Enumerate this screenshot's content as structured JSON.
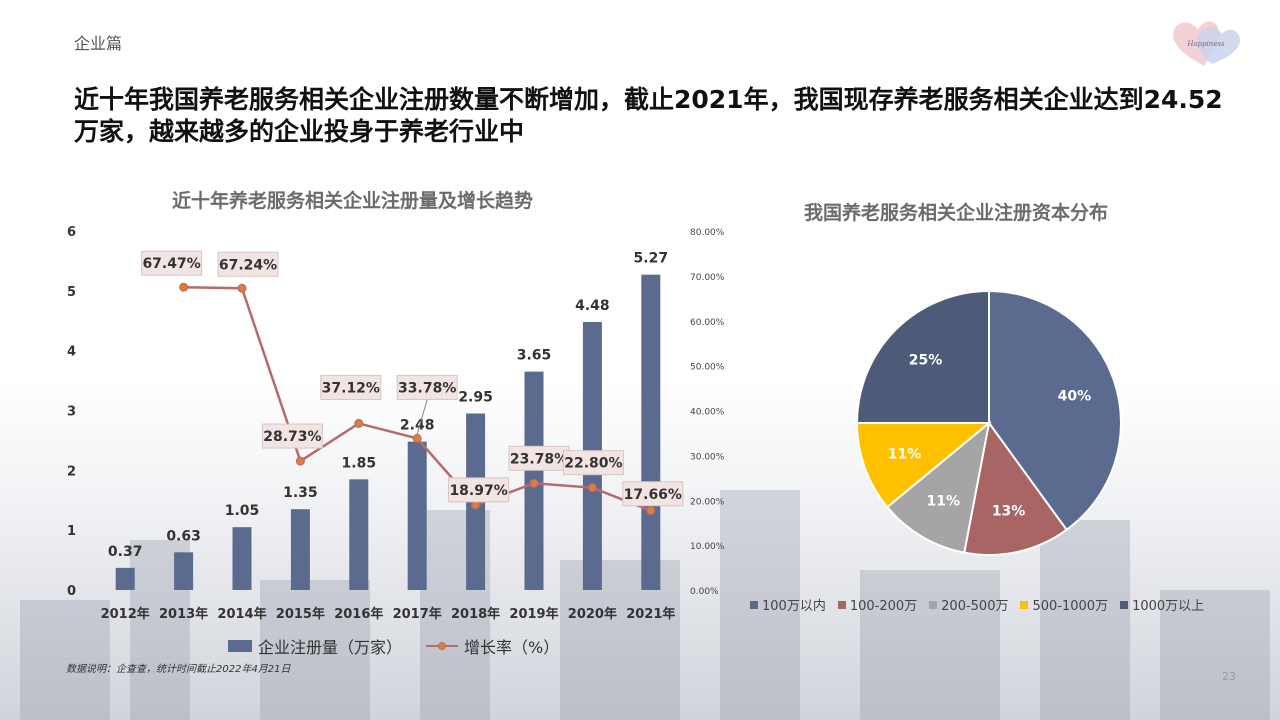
{
  "section_label": "企业篇",
  "headline": "近十年我国养老服务相关企业注册数量不断增加，截止2021年，我国现存养老服务相关企业达到24.52万家，越来越多的企业投身于养老行业中",
  "page_number": "23",
  "source_note": "数据说明：企查查，统计时间截止2022年4月21日",
  "logo_text": "we share Happiness 微乐康",
  "colors": {
    "bar": "#5b6a8f",
    "line": "#b56b6b",
    "line_marker": "#e07b39",
    "label_bg": "#f3e4e4"
  },
  "chart_data": [
    {
      "type": "bar",
      "title": "近十年养老服务相关企业注册量及增长趋势",
      "categories": [
        "2012年",
        "2013年",
        "2014年",
        "2015年",
        "2016年",
        "2017年",
        "2018年",
        "2019年",
        "2020年",
        "2021年"
      ],
      "series": [
        {
          "name": "企业注册量（万家）",
          "type": "bar",
          "axis": "left",
          "values": [
            0.37,
            0.63,
            1.05,
            1.35,
            1.85,
            2.48,
            2.95,
            3.65,
            4.48,
            5.27
          ],
          "labels": [
            "0.37",
            "0.63",
            "1.05",
            "1.35",
            "1.85",
            "2.48",
            "2.95",
            "3.65",
            "4.48",
            "5.27"
          ]
        },
        {
          "name": "增长率（%）",
          "type": "line",
          "axis": "right",
          "values": [
            null,
            67.47,
            67.24,
            28.73,
            37.12,
            33.78,
            18.97,
            23.78,
            22.8,
            17.66
          ],
          "labels": [
            "",
            "67.47%",
            "67.24%",
            "28.73%",
            "37.12%",
            "33.78%",
            "18.97%",
            "23.78%",
            "22.80%",
            "17.66%"
          ]
        }
      ],
      "ylim": [
        0,
        6
      ],
      "yticks": [
        "0",
        "1",
        "2",
        "3",
        "4",
        "5",
        "6"
      ],
      "y2lim": [
        0,
        80
      ],
      "y2ticks": [
        "0.00%",
        "10.00%",
        "20.00%",
        "30.00%",
        "40.00%",
        "50.00%",
        "60.00%",
        "70.00%",
        "80.00%"
      ],
      "legend_position": "bottom"
    },
    {
      "type": "pie",
      "title": "我国养老服务相关企业注册资本分布",
      "slices": [
        {
          "name": "100万以内",
          "value": 40,
          "label": "40%",
          "color": "#5b6a8f"
        },
        {
          "name": "100-200万",
          "value": 13,
          "label": "13%",
          "color": "#a96464"
        },
        {
          "name": "200-500万",
          "value": 11,
          "label": "11%",
          "color": "#a5a5a5"
        },
        {
          "name": "500-1000万",
          "value": 11,
          "label": "11%",
          "color": "#ffc000"
        },
        {
          "name": "1000万以上",
          "value": 25,
          "label": "25%",
          "color": "#4e5b78"
        }
      ],
      "legend_position": "bottom"
    }
  ]
}
